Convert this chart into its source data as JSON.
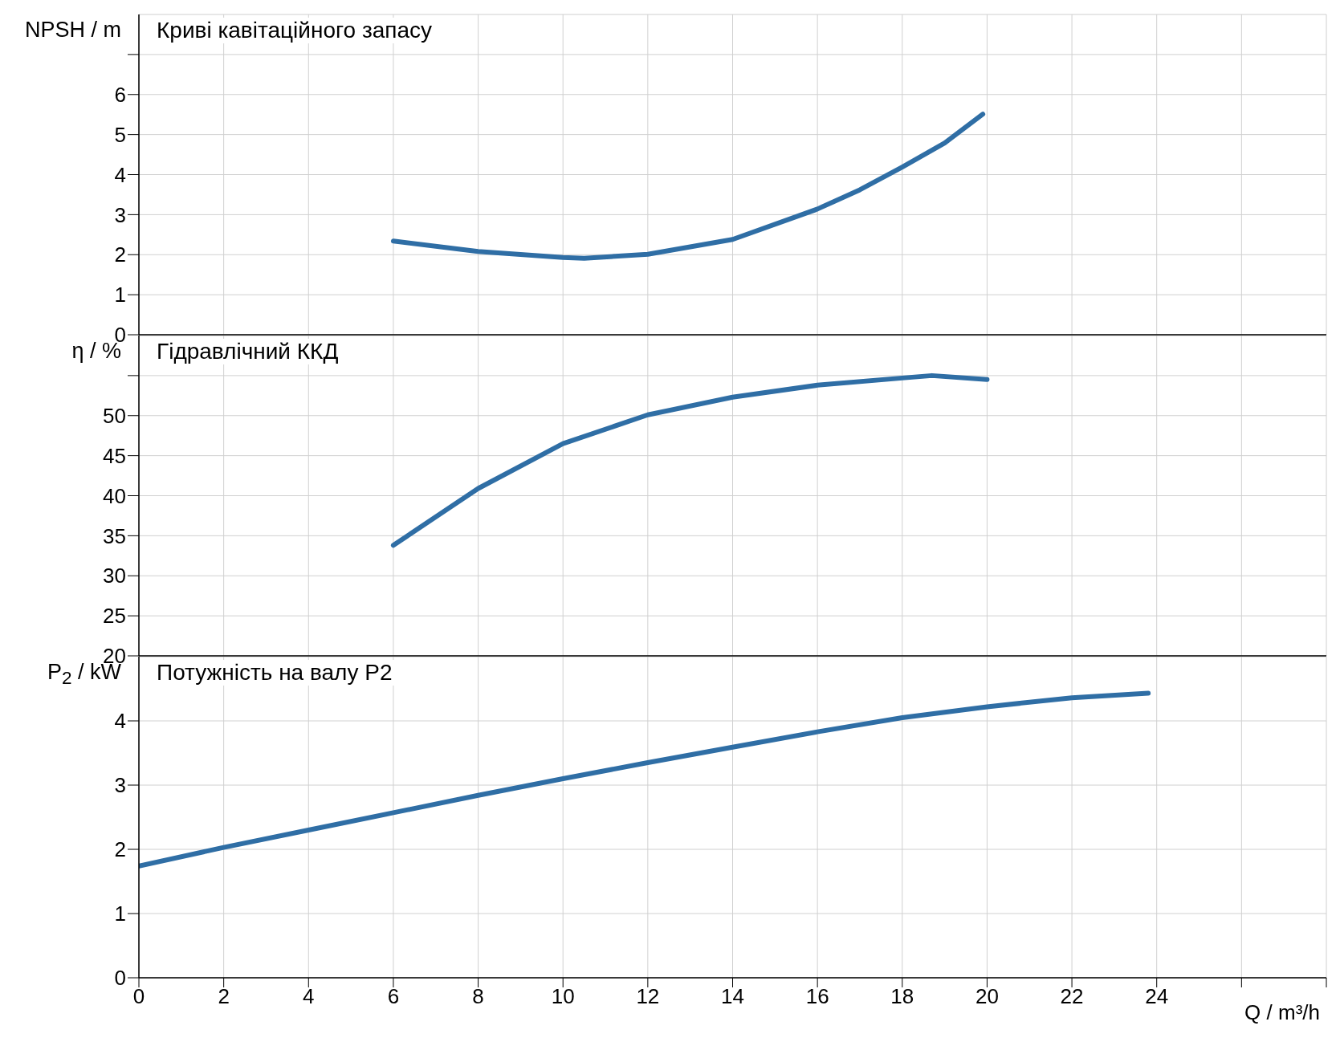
{
  "chart_data": [
    {
      "type": "line",
      "title": "Криві кавітаційного запасу",
      "ylabel": "NPSH / m",
      "x": [
        6,
        8,
        10,
        10.5,
        12,
        14,
        16,
        17,
        18,
        19,
        19.9
      ],
      "series": [
        {
          "color": "#2f6ea5",
          "values": [
            2.34,
            2.08,
            1.93,
            1.91,
            2.01,
            2.38,
            3.14,
            3.62,
            4.19,
            4.79,
            5.51
          ]
        }
      ],
      "xlim": [
        0,
        28
      ],
      "xticks": [
        0,
        2,
        4,
        6,
        8,
        10,
        12,
        14,
        16,
        18,
        20,
        22,
        24,
        26,
        28
      ],
      "ylim": [
        0,
        8
      ],
      "yticks": [
        0,
        1,
        2,
        3,
        4,
        5,
        6,
        {
          "value": 7,
          "label": null
        }
      ],
      "grid": true,
      "tick_labels": "y"
    },
    {
      "type": "line",
      "title": "Гідравлічний ККД",
      "ylabel": "η / %",
      "x": [
        6,
        8,
        10,
        12,
        14,
        16,
        18,
        18.7,
        20
      ],
      "series": [
        {
          "color": "#2f6ea5",
          "values": [
            33.8,
            40.9,
            46.5,
            50.1,
            52.3,
            53.8,
            54.7,
            55,
            54.5
          ]
        }
      ],
      "xlim": [
        0,
        28
      ],
      "xticks": [
        0,
        2,
        4,
        6,
        8,
        10,
        12,
        14,
        16,
        18,
        20,
        22,
        24,
        26,
        28
      ],
      "ylim": [
        20,
        60
      ],
      "yticks": [
        20,
        25,
        30,
        35,
        40,
        45,
        50,
        {
          "value": 55,
          "label": null
        }
      ],
      "grid": true,
      "tick_labels": "y"
    },
    {
      "type": "line",
      "title": "Потужність на валу P2",
      "ylabel": "P$_{2}$ / kW",
      "xlabel": "Q / m³/h",
      "x": [
        0,
        2,
        4,
        6,
        8,
        10,
        12,
        14,
        16,
        18,
        20,
        22,
        23.8
      ],
      "series": [
        {
          "color": "#2f6ea5",
          "values": [
            1.74,
            2.03,
            2.3,
            2.57,
            2.84,
            3.1,
            3.35,
            3.59,
            3.83,
            4.05,
            4.22,
            4.36,
            4.43
          ]
        }
      ],
      "xlim": [
        0,
        28
      ],
      "xticks": [
        0,
        2,
        4,
        6,
        8,
        10,
        12,
        14,
        16,
        18,
        20,
        22,
        24,
        {
          "value": 26,
          "label": null
        },
        {
          "value": 28,
          "label": null
        }
      ],
      "ylim": [
        0,
        5
      ],
      "yticks": [
        0,
        1,
        2,
        3,
        4
      ],
      "grid": true
    }
  ]
}
